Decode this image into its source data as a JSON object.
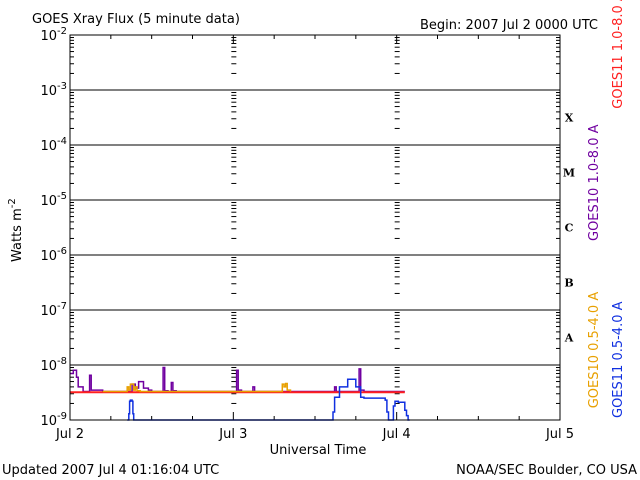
{
  "chart_data": {
    "type": "line",
    "title": "GOES Xray Flux (5 minute data)",
    "begin_label": "Begin:  2007 Jul 2 0000 UTC",
    "xlabel": "Universal Time",
    "ylabel": "Watts m",
    "ylabel_superscript": "-2",
    "y_scale": "log",
    "ylim": [
      1e-09,
      0.01
    ],
    "y_ticks": [
      {
        "base": "10",
        "exp": "-2"
      },
      {
        "base": "10",
        "exp": "-3"
      },
      {
        "base": "10",
        "exp": "-4"
      },
      {
        "base": "10",
        "exp": "-5"
      },
      {
        "base": "10",
        "exp": "-6"
      },
      {
        "base": "10",
        "exp": "-7"
      },
      {
        "base": "10",
        "exp": "-8"
      },
      {
        "base": "10",
        "exp": "-9"
      }
    ],
    "x_ticks": [
      "Jul 2",
      "Jul 3",
      "Jul 4",
      "Jul 5"
    ],
    "xlim_days": [
      0,
      3
    ],
    "flare_classes": [
      {
        "label": "X",
        "value": 0.0001
      },
      {
        "label": "M",
        "value": 1e-05
      },
      {
        "label": "C",
        "value": 1e-06
      },
      {
        "label": "B",
        "value": 1e-07
      },
      {
        "label": "A",
        "value": 1e-08
      }
    ],
    "grid": true,
    "legend_position": "right",
    "series": [
      {
        "name": "GOES10 1.0-8.0 A",
        "color": "#7000a0",
        "x": [
          0.0,
          0.02,
          0.04,
          0.05,
          0.08,
          0.1,
          0.12,
          0.13,
          0.2,
          0.35,
          0.38,
          0.4,
          0.42,
          0.45,
          0.48,
          0.5,
          0.52,
          0.55,
          0.57,
          0.58,
          0.6,
          0.62,
          0.63,
          0.65,
          0.9,
          1.0,
          1.02,
          1.03,
          1.05,
          1.1,
          1.12,
          1.13,
          1.2,
          1.5,
          1.6,
          1.62,
          1.63,
          1.65,
          1.75,
          1.77,
          1.78,
          1.8,
          2.0,
          2.05
        ],
        "y": [
          7e-09,
          8e-09,
          6e-09,
          4e-09,
          3.3e-09,
          3.3e-09,
          6.5e-09,
          3.5e-09,
          3.3e-09,
          3.3e-09,
          4.5e-09,
          3.8e-09,
          5e-09,
          3.8e-09,
          3.5e-09,
          3.3e-09,
          3.3e-09,
          3.3e-09,
          9e-09,
          3.4e-09,
          3.3e-09,
          4.8e-09,
          3.4e-09,
          3.3e-09,
          3.3e-09,
          3.3e-09,
          8e-09,
          3.5e-09,
          3.3e-09,
          3.3e-09,
          4e-09,
          3.3e-09,
          3.3e-09,
          3.3e-09,
          3.3e-09,
          4e-09,
          3.3e-09,
          3.3e-09,
          3.3e-09,
          8.5e-09,
          3.5e-09,
          3.3e-09,
          3.3e-09,
          3.3e-09
        ]
      },
      {
        "name": "GOES11 1.0-8.0 A",
        "color": "#ff2020",
        "x": [
          0.0,
          0.5,
          1.0,
          1.5,
          2.05
        ],
        "y": [
          3.2e-09,
          3.2e-09,
          3.2e-09,
          3.2e-09,
          3.2e-09
        ]
      },
      {
        "name": "GOES10 0.5-4.0 A",
        "color": "#e8a000",
        "x": [
          0.2,
          0.33,
          0.35,
          0.36,
          0.37,
          0.39,
          0.4,
          0.41,
          0.43,
          0.45,
          1.28,
          1.3,
          1.31,
          1.32,
          1.33,
          1.35
        ],
        "y": [
          3.3e-09,
          3.3e-09,
          4e-09,
          3.5e-09,
          4.5e-09,
          3.5e-09,
          4e-09,
          3.4e-09,
          3.3e-09,
          3.3e-09,
          3.3e-09,
          4.5e-09,
          4e-09,
          4.6e-09,
          3.5e-09,
          3.3e-09
        ]
      },
      {
        "name": "GOES11 0.5-4.0 A",
        "color": "#1030e0",
        "x": [
          0.35,
          0.36,
          0.365,
          0.37,
          0.38,
          0.385,
          0.39,
          1.6,
          1.61,
          1.62,
          1.65,
          1.68,
          1.7,
          1.71,
          1.75,
          1.78,
          1.8,
          1.82,
          1.83,
          1.84,
          1.93,
          1.94,
          1.95,
          1.97,
          1.98,
          1.99,
          2.0,
          2.01,
          2.02,
          2.04,
          2.05,
          2.06,
          2.07,
          2.08
        ],
        "y": [
          1e-09,
          1.3e-09,
          2.2e-09,
          2.3e-09,
          2.2e-09,
          1.3e-09,
          1e-09,
          1e-09,
          1.4e-09,
          2.6e-09,
          4e-09,
          4e-09,
          5.5e-09,
          5.5e-09,
          4e-09,
          2.6e-09,
          2.5e-09,
          2.5e-09,
          2.5e-09,
          2.5e-09,
          2.3e-09,
          1.4e-09,
          1e-09,
          1e-09,
          1.8e-09,
          2.2e-09,
          2.2e-09,
          2.1e-09,
          2.1e-09,
          2.1e-09,
          1.5e-09,
          1.2e-09,
          1e-09,
          1e-09
        ]
      }
    ]
  },
  "footer": {
    "updated": "Updated 2007 Jul  4 01:16:04 UTC",
    "credit": "NOAA/SEC Boulder, CO USA"
  }
}
